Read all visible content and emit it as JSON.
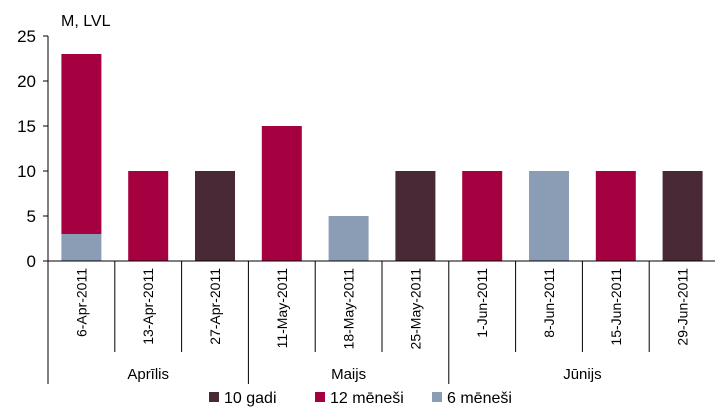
{
  "chart_data": {
    "type": "bar",
    "stacked": true,
    "ylabel": "M, LVL",
    "ylim": [
      0,
      25
    ],
    "yticks": [
      "0",
      "5",
      "10",
      "15",
      "20",
      "25"
    ],
    "grid": false,
    "legend_position": "bottom",
    "categories": [
      "6-Apr-2011",
      "13-Apr-2011",
      "27-Apr-2011",
      "11-May-2011",
      "18-May-2011",
      "25-May-2011",
      "1-Jun-2011",
      "8-Jun-2011",
      "15-Jun-2011",
      "29-Jun-2011"
    ],
    "groups": [
      {
        "label": "Aprīlis",
        "start": 0,
        "end": 2
      },
      {
        "label": "Maijs",
        "start": 3,
        "end": 5
      },
      {
        "label": "Jūnijs",
        "start": 6,
        "end": 9
      }
    ],
    "series": [
      {
        "name": "6 mēneši",
        "color": "#8a9db5",
        "values": [
          3,
          0,
          0,
          0,
          5,
          0,
          0,
          10,
          0,
          0
        ]
      },
      {
        "name": "12 mēneši",
        "color": "#a5003f",
        "values": [
          20,
          10,
          0,
          15,
          0,
          0,
          10,
          0,
          10,
          0
        ]
      },
      {
        "name": "10 gadi",
        "color": "#4a2937",
        "values": [
          0,
          0,
          10,
          0,
          0,
          10,
          0,
          0,
          0,
          10
        ]
      }
    ],
    "legend_order": [
      "10 gadi",
      "12 mēneši",
      "6 mēneši"
    ]
  }
}
